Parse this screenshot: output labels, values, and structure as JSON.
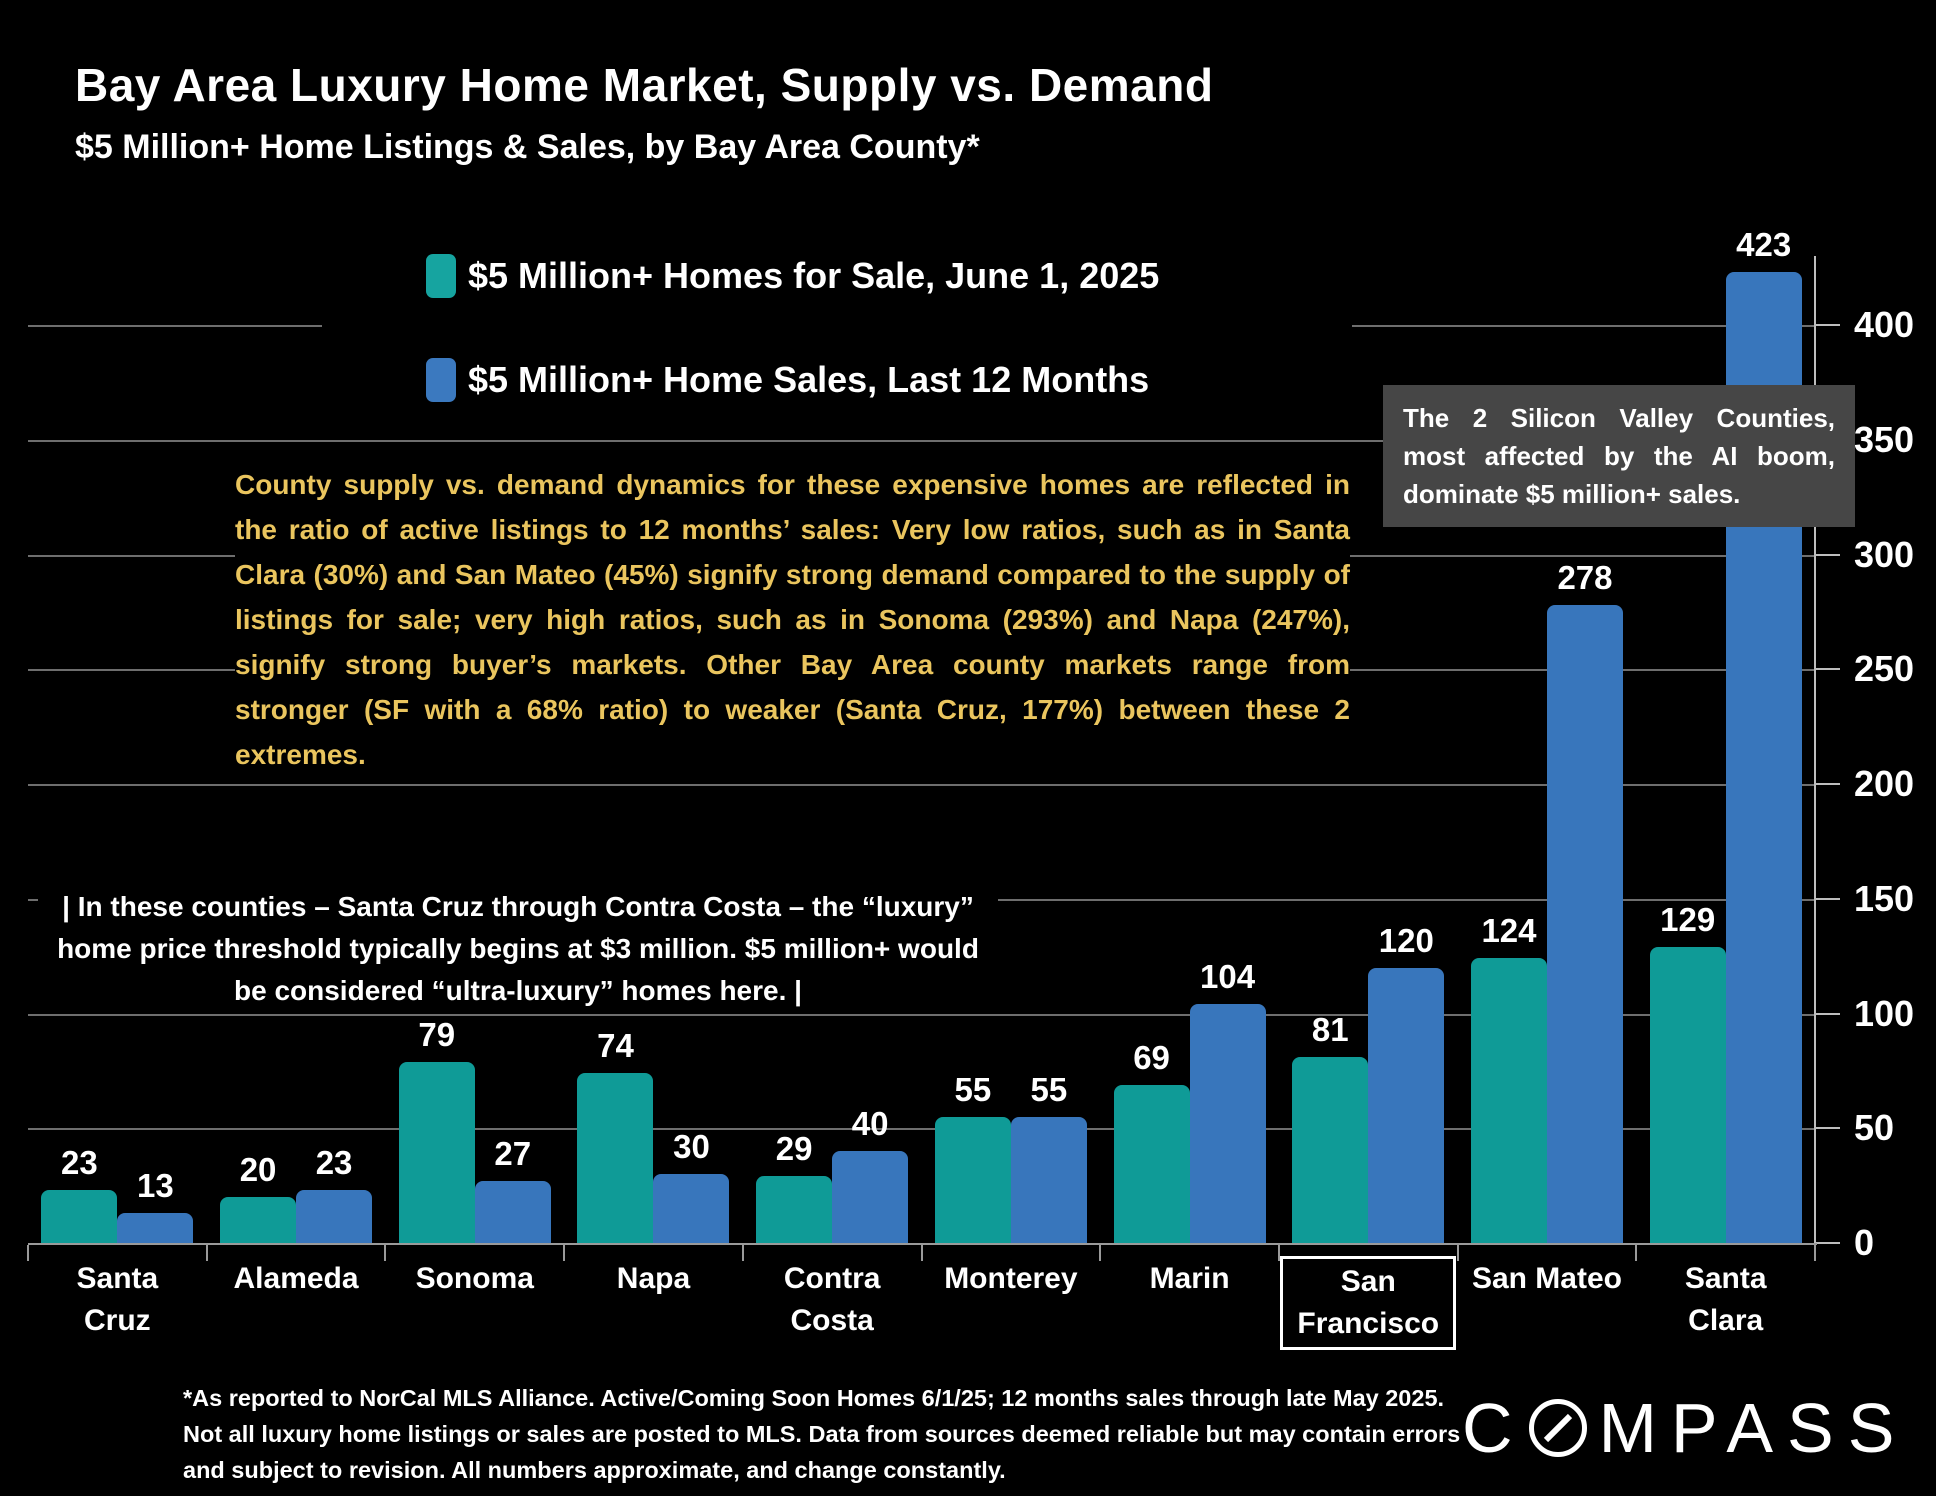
{
  "title": "Bay Area Luxury Home Market, Supply vs. Demand",
  "subtitle": "$5 Million+ Home Listings & Sales, by Bay Area County*",
  "legend": [
    {
      "label": "$5 Million+ Homes for Sale, June 1, 2025",
      "color": "#16a4a0"
    },
    {
      "label": "$5 Million+ Home Sales, Last 12 Months",
      "color": "#3b79bf"
    }
  ],
  "annotation_yellow": "County supply vs. demand dynamics for these expensive homes are reflected in the ratio of active listings to 12 months’ sales:  Very low ratios, such as in Santa Clara (30%) and San Mateo (45%) signify strong demand compared to the supply of listings for sale; very high ratios, such as in Sonoma (293%) and Napa (247%), signify strong buyer’s markets. Other Bay Area county markets range from stronger (SF with a 68% ratio) to weaker (Santa Cruz, 177%) between these 2 extremes.",
  "callout": "The 2 Silicon Valley Counties, most affected by the AI boom, dominate $5 million+ sales.",
  "note_white": "| In these counties – Santa Cruz through Contra Costa – the “luxury” home price threshold typically begins at $3 million. $5 million+ would be considered “ultra-luxury” homes here. |",
  "footnote": "*As reported to NorCal MLS Alliance. Active/Coming Soon Homes 6/1/25; 12 months sales through late May 2025. Not all luxury home listings or sales are posted to MLS. Data from sources deemed reliable but may contain errors and subject to revision. All numbers approximate, and change constantly.",
  "logo": {
    "prefix": "C",
    "suffix": "MPASS"
  },
  "colors": {
    "background": "#000000",
    "listings_bar": "#0f9b97",
    "sales_bar": "#3876bc",
    "yellow_text": "#eac55e",
    "callout_bg": "#464646",
    "gridline": "#6e6e6e"
  },
  "chart_data": {
    "type": "bar",
    "title": "Bay Area Luxury Home Market, Supply vs. Demand",
    "subtitle": "$5 Million+ Home Listings & Sales, by Bay Area County*",
    "categories": [
      "Santa Cruz",
      "Alameda",
      "Sonoma",
      "Napa",
      "Contra Costa",
      "Monterey",
      "Marin",
      "San Francisco",
      "San Mateo",
      "Santa Clara"
    ],
    "category_lines": [
      [
        "Santa",
        "Cruz"
      ],
      [
        "Alameda"
      ],
      [
        "Sonoma"
      ],
      [
        "Napa"
      ],
      [
        "Contra",
        "Costa"
      ],
      [
        "Monterey"
      ],
      [
        "Marin"
      ],
      [
        "San",
        "Francisco"
      ],
      [
        "San Mateo"
      ],
      [
        "Santa",
        "Clara"
      ]
    ],
    "highlighted_category": "San Francisco",
    "series": [
      {
        "name": "$5 Million+ Homes for Sale, June 1, 2025",
        "color": "#0f9b97",
        "values": [
          23,
          20,
          79,
          74,
          29,
          55,
          69,
          81,
          124,
          129
        ]
      },
      {
        "name": "$5 Million+ Home Sales, Last 12 Months",
        "color": "#3876bc",
        "values": [
          13,
          23,
          27,
          30,
          40,
          55,
          104,
          120,
          278,
          423
        ]
      }
    ],
    "xlabel": "",
    "ylabel": "",
    "ylim": [
      0,
      430
    ],
    "yticks": [
      0,
      50,
      100,
      150,
      200,
      250,
      300,
      350,
      400
    ],
    "grid": true,
    "legend_position": "top-left",
    "axis_side": "right"
  }
}
